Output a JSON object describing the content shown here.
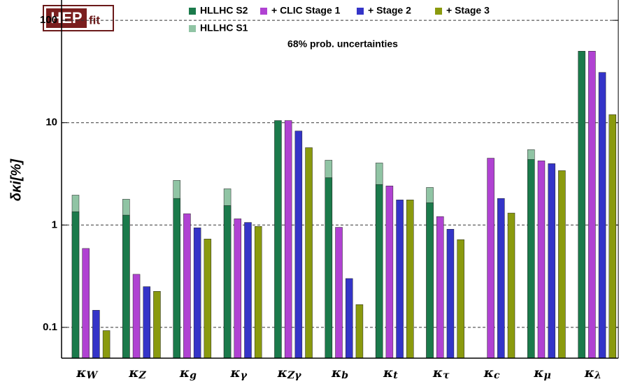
{
  "chart_data": {
    "type": "bar",
    "log": true,
    "grid": true,
    "logo": {
      "part1": "HEP",
      "part2": "fit"
    },
    "annotation": "68% prob. uncertainties",
    "ylabel": "δκi[%]",
    "categories": [
      "κW",
      "κZ",
      "κg",
      "κγ",
      "κZγ",
      "κb",
      "κt",
      "κτ",
      "κc",
      "κμ",
      "κλ"
    ],
    "ylim": [
      0.05,
      158
    ],
    "yticks": [
      0.1,
      1,
      10,
      100
    ],
    "series": [
      {
        "name": "HLLHC S1",
        "color": "#90c4a4",
        "behind": true,
        "values": [
          1.96,
          1.79,
          2.73,
          2.26,
          null,
          4.3,
          4.04,
          2.33,
          null,
          5.45,
          null
        ]
      },
      {
        "name": "HLLHC S2",
        "color": "#1b7a4b",
        "values": [
          1.35,
          1.25,
          1.82,
          1.55,
          10.5,
          2.9,
          2.49,
          1.65,
          null,
          4.37,
          50
        ]
      },
      {
        "name": "+ CLIC Stage 1",
        "color": "#b042d2",
        "values": [
          0.59,
          0.33,
          1.29,
          1.15,
          10.5,
          0.95,
          2.41,
          1.21,
          4.5,
          4.24,
          50
        ]
      },
      {
        "name": "+ Stage 2",
        "color": "#3434c8",
        "values": [
          0.147,
          0.25,
          0.94,
          1.06,
          8.3,
          0.3,
          1.76,
          0.91,
          1.82,
          3.98,
          31
        ]
      },
      {
        "name": "+ Stage 3",
        "color": "#8a9a0e",
        "values": [
          0.093,
          0.225,
          0.73,
          0.97,
          5.7,
          0.167,
          1.76,
          0.72,
          1.31,
          3.4,
          12
        ]
      }
    ]
  }
}
